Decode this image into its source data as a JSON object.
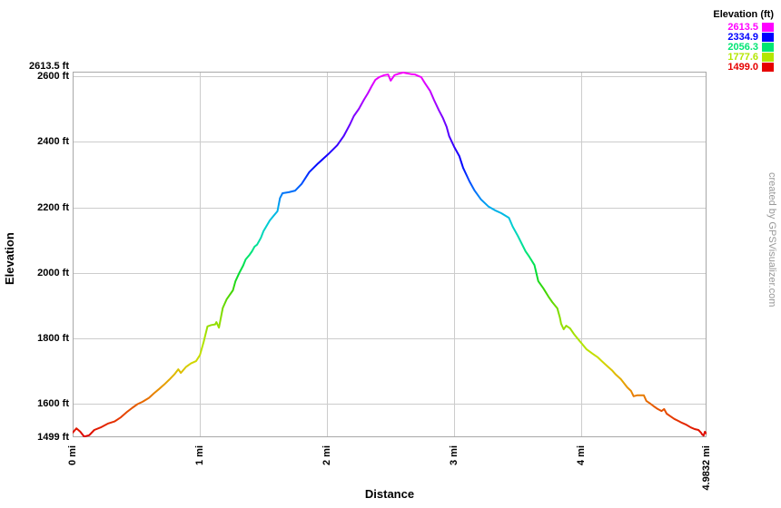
{
  "page": {
    "background": "#ffffff"
  },
  "legend": {
    "title": "Elevation (ft)",
    "entries": [
      {
        "value": "2613.5",
        "color": "#ff00ff"
      },
      {
        "value": "2334.9",
        "color": "#0000ff"
      },
      {
        "value": "2056.3",
        "color": "#00e673"
      },
      {
        "value": "1777.6",
        "color": "#b4e600"
      },
      {
        "value": "1499.0",
        "color": "#e60000"
      }
    ]
  },
  "watermark": {
    "text": "created by GPSVisualizer.com",
    "color": "#999999"
  },
  "chart_data": {
    "type": "line",
    "title": "",
    "xlabel": "Distance",
    "ylabel": "Elevation",
    "x_unit": "mi",
    "y_unit": "ft",
    "xlim": [
      0,
      4.9832
    ],
    "ylim": [
      1499,
      2613.5
    ],
    "grid": true,
    "legend_position": "top-right",
    "colors": {
      "grid": "#cccccc",
      "border": "#a8a8a8",
      "background": "#ffffff"
    },
    "x_ticks": [
      {
        "label": "0 mi",
        "value": 0
      },
      {
        "label": "1 mi",
        "value": 1
      },
      {
        "label": "2 mi",
        "value": 2
      },
      {
        "label": "3 mi",
        "value": 3
      },
      {
        "label": "4 mi",
        "value": 4
      },
      {
        "label": "4.9832 mi",
        "value": 4.9832
      }
    ],
    "y_ticks": [
      {
        "label": "2613.5 ft",
        "value": 2613.5
      },
      {
        "label": "2600 ft",
        "value": 2600
      },
      {
        "label": "2400 ft",
        "value": 2400
      },
      {
        "label": "2200 ft",
        "value": 2200
      },
      {
        "label": "2000 ft",
        "value": 2000
      },
      {
        "label": "1800 ft",
        "value": 1800
      },
      {
        "label": "1600 ft",
        "value": 1600
      },
      {
        "label": "1499 ft",
        "value": 1499
      }
    ],
    "gradient": [
      {
        "elev": 2613.5,
        "color": "#ff00ff"
      },
      {
        "elev": 2560,
        "color": "#cc00ff"
      },
      {
        "elev": 2480,
        "color": "#8000ff"
      },
      {
        "elev": 2400,
        "color": "#4000ff"
      },
      {
        "elev": 2334.9,
        "color": "#0000ff"
      },
      {
        "elev": 2270,
        "color": "#0055ff"
      },
      {
        "elev": 2200,
        "color": "#00aaee"
      },
      {
        "elev": 2150,
        "color": "#00ccd5"
      },
      {
        "elev": 2100,
        "color": "#00dcaa"
      },
      {
        "elev": 2056.3,
        "color": "#00e673"
      },
      {
        "elev": 2000,
        "color": "#00dd33"
      },
      {
        "elev": 1940,
        "color": "#44d500"
      },
      {
        "elev": 1880,
        "color": "#7edc00"
      },
      {
        "elev": 1820,
        "color": "#a0e000"
      },
      {
        "elev": 1777.6,
        "color": "#b4e600"
      },
      {
        "elev": 1730,
        "color": "#d0d800"
      },
      {
        "elev": 1690,
        "color": "#e0b800"
      },
      {
        "elev": 1650,
        "color": "#e89500"
      },
      {
        "elev": 1610,
        "color": "#e66a00"
      },
      {
        "elev": 1560,
        "color": "#e63c00"
      },
      {
        "elev": 1499,
        "color": "#dd0000"
      }
    ],
    "series": [
      {
        "name": "elevation-profile",
        "points": [
          [
            0.0,
            1513
          ],
          [
            0.03,
            1526
          ],
          [
            0.06,
            1516
          ],
          [
            0.09,
            1501
          ],
          [
            0.13,
            1505
          ],
          [
            0.17,
            1521
          ],
          [
            0.22,
            1529
          ],
          [
            0.28,
            1541
          ],
          [
            0.33,
            1547
          ],
          [
            0.38,
            1560
          ],
          [
            0.43,
            1577
          ],
          [
            0.47,
            1589
          ],
          [
            0.51,
            1600
          ],
          [
            0.55,
            1607
          ],
          [
            0.6,
            1619
          ],
          [
            0.64,
            1633
          ],
          [
            0.68,
            1646
          ],
          [
            0.72,
            1660
          ],
          [
            0.76,
            1675
          ],
          [
            0.8,
            1691
          ],
          [
            0.83,
            1706
          ],
          [
            0.85,
            1695
          ],
          [
            0.89,
            1713
          ],
          [
            0.93,
            1724
          ],
          [
            0.97,
            1731
          ],
          [
            1.0,
            1749
          ],
          [
            1.03,
            1790
          ],
          [
            1.06,
            1837
          ],
          [
            1.09,
            1841
          ],
          [
            1.12,
            1843
          ],
          [
            1.13,
            1850
          ],
          [
            1.15,
            1833
          ],
          [
            1.18,
            1893
          ],
          [
            1.21,
            1919
          ],
          [
            1.26,
            1947
          ],
          [
            1.28,
            1975
          ],
          [
            1.31,
            2000
          ],
          [
            1.34,
            2022
          ],
          [
            1.36,
            2041
          ],
          [
            1.39,
            2055
          ],
          [
            1.41,
            2066
          ],
          [
            1.43,
            2080
          ],
          [
            1.45,
            2086
          ],
          [
            1.48,
            2107
          ],
          [
            1.5,
            2127
          ],
          [
            1.55,
            2160
          ],
          [
            1.58,
            2174
          ],
          [
            1.61,
            2188
          ],
          [
            1.63,
            2228
          ],
          [
            1.65,
            2243
          ],
          [
            1.7,
            2246
          ],
          [
            1.75,
            2251
          ],
          [
            1.8,
            2271
          ],
          [
            1.86,
            2307
          ],
          [
            1.93,
            2334
          ],
          [
            2.01,
            2362
          ],
          [
            2.08,
            2389
          ],
          [
            2.13,
            2417
          ],
          [
            2.18,
            2453
          ],
          [
            2.21,
            2478
          ],
          [
            2.25,
            2500
          ],
          [
            2.29,
            2528
          ],
          [
            2.32,
            2547
          ],
          [
            2.35,
            2569
          ],
          [
            2.38,
            2589
          ],
          [
            2.41,
            2597
          ],
          [
            2.45,
            2603
          ],
          [
            2.48,
            2605
          ],
          [
            2.5,
            2586
          ],
          [
            2.53,
            2603
          ],
          [
            2.57,
            2608
          ],
          [
            2.6,
            2611
          ],
          [
            2.62,
            2609
          ],
          [
            2.66,
            2606
          ],
          [
            2.69,
            2605
          ],
          [
            2.72,
            2600
          ],
          [
            2.74,
            2597
          ],
          [
            2.77,
            2578
          ],
          [
            2.81,
            2555
          ],
          [
            2.84,
            2528
          ],
          [
            2.88,
            2495
          ],
          [
            2.91,
            2473
          ],
          [
            2.94,
            2445
          ],
          [
            2.96,
            2417
          ],
          [
            3.0,
            2384
          ],
          [
            3.04,
            2356
          ],
          [
            3.07,
            2320
          ],
          [
            3.12,
            2279
          ],
          [
            3.16,
            2251
          ],
          [
            3.21,
            2224
          ],
          [
            3.27,
            2202
          ],
          [
            3.32,
            2191
          ],
          [
            3.37,
            2182
          ],
          [
            3.43,
            2168
          ],
          [
            3.46,
            2141
          ],
          [
            3.5,
            2113
          ],
          [
            3.56,
            2066
          ],
          [
            3.59,
            2049
          ],
          [
            3.63,
            2024
          ],
          [
            3.66,
            1975
          ],
          [
            3.7,
            1953
          ],
          [
            3.74,
            1928
          ],
          [
            3.77,
            1911
          ],
          [
            3.81,
            1892
          ],
          [
            3.83,
            1864
          ],
          [
            3.84,
            1845
          ],
          [
            3.86,
            1828
          ],
          [
            3.88,
            1839
          ],
          [
            3.91,
            1831
          ],
          [
            3.94,
            1814
          ],
          [
            3.98,
            1795
          ],
          [
            4.01,
            1781
          ],
          [
            4.04,
            1767
          ],
          [
            4.09,
            1753
          ],
          [
            4.13,
            1742
          ],
          [
            4.16,
            1731
          ],
          [
            4.2,
            1717
          ],
          [
            4.24,
            1703
          ],
          [
            4.27,
            1690
          ],
          [
            4.31,
            1676
          ],
          [
            4.36,
            1651
          ],
          [
            4.39,
            1640
          ],
          [
            4.41,
            1624
          ],
          [
            4.44,
            1627
          ],
          [
            4.49,
            1627
          ],
          [
            4.51,
            1610
          ],
          [
            4.54,
            1602
          ],
          [
            4.57,
            1593
          ],
          [
            4.6,
            1585
          ],
          [
            4.63,
            1579
          ],
          [
            4.65,
            1585
          ],
          [
            4.67,
            1571
          ],
          [
            4.7,
            1563
          ],
          [
            4.73,
            1555
          ],
          [
            4.76,
            1549
          ],
          [
            4.79,
            1543
          ],
          [
            4.82,
            1538
          ],
          [
            4.86,
            1529
          ],
          [
            4.89,
            1524
          ],
          [
            4.92,
            1521
          ],
          [
            4.94,
            1513
          ],
          [
            4.95,
            1507
          ],
          [
            4.96,
            1504
          ],
          [
            4.97,
            1516
          ],
          [
            4.9832,
            1510
          ]
        ]
      }
    ]
  }
}
